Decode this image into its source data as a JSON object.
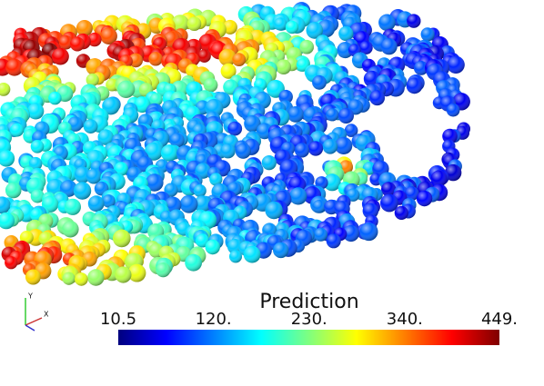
{
  "colorbar": {
    "title": "Prediction",
    "range": [
      10.5,
      449
    ],
    "ticks": [
      {
        "value": 10.5,
        "label": "10.5"
      },
      {
        "value": 120,
        "label": "120."
      },
      {
        "value": 230,
        "label": "230."
      },
      {
        "value": 340,
        "label": "340."
      },
      {
        "value": 449,
        "label": "449."
      }
    ],
    "colormap": [
      "#00007f",
      "#0000ff",
      "#007fff",
      "#00ffff",
      "#7fff7f",
      "#ffff00",
      "#ff7f00",
      "#ff0000",
      "#7f0000"
    ]
  },
  "axes_triad": {
    "labels": [
      "Y",
      "X"
    ]
  }
}
